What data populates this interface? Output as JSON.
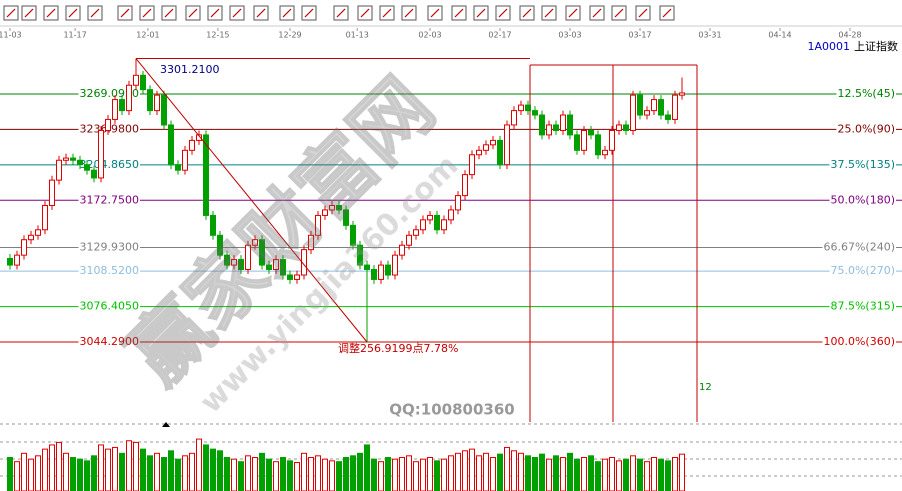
{
  "chart_data": {
    "type": "candlestick",
    "code": "1A0001",
    "name": "上证指数",
    "xlim": [
      -1.43,
      127.43
    ],
    "xticks": [
      {
        "value": 0,
        "label": "11-03"
      },
      {
        "value": 9.3,
        "label": "11-17"
      },
      {
        "value": 19.7,
        "label": "12-01"
      },
      {
        "value": 29.7,
        "label": "12-15"
      },
      {
        "value": 40,
        "label": "12-29"
      },
      {
        "value": 49.6,
        "label": "01-13"
      },
      {
        "value": 60,
        "label": "02-03"
      },
      {
        "value": 70,
        "label": "02-17"
      },
      {
        "value": 80,
        "label": "03-03"
      },
      {
        "value": 90,
        "label": "03-17"
      },
      {
        "value": 100,
        "label": "03-31"
      },
      {
        "value": 110,
        "label": "04-14"
      },
      {
        "value": 120,
        "label": "04-28"
      }
    ],
    "ylim": [
      2973.6,
      3332.5
    ],
    "up_color": "#e00000",
    "down_color": "#00a000",
    "open": [
      3120,
      3114,
      3123,
      3137,
      3141,
      3146,
      3168,
      3191,
      3209,
      3211,
      3209,
      3205,
      3200,
      3193,
      3236,
      3246,
      3264,
      3254,
      3277,
      3286,
      3273,
      3254,
      3268,
      3241,
      3205,
      3200,
      3218,
      3227,
      3232,
      3159,
      3141,
      3123,
      3114,
      3119,
      3110,
      3132,
      3137,
      3114,
      3110,
      3119,
      3105,
      3101,
      3105,
      3128,
      3141,
      3159,
      3164,
      3168,
      3164,
      3150,
      3132,
      3114,
      3110,
      3101,
      3114,
      3105,
      3123,
      3132,
      3141,
      3146,
      3155,
      3159,
      3146,
      3155,
      3164,
      3177,
      3196,
      3214,
      3218,
      3223,
      3227,
      3205,
      3241,
      3254,
      3259,
      3254,
      3250,
      3232,
      3241,
      3236,
      3250,
      3232,
      3218,
      3236,
      3232,
      3214,
      3218,
      3236,
      3241,
      3236,
      3268,
      3250,
      3254,
      3264,
      3250,
      3246,
      3268
    ],
    "high": [
      3124,
      3127,
      3141,
      3145,
      3150,
      3172,
      3195,
      3213,
      3215,
      3215,
      3213,
      3209,
      3204,
      3240,
      3250,
      3268,
      3268,
      3281,
      3301.21,
      3290,
      3277,
      3272,
      3272,
      3245,
      3209,
      3222,
      3231,
      3236,
      3236,
      3163,
      3145,
      3127,
      3123,
      3123,
      3136,
      3141,
      3141,
      3118,
      3123,
      3123,
      3109,
      3109,
      3132,
      3145,
      3163,
      3168,
      3172,
      3172,
      3168,
      3154,
      3136,
      3118,
      3114,
      3118,
      3118,
      3127,
      3136,
      3145,
      3150,
      3159,
      3163,
      3163,
      3159,
      3168,
      3181,
      3200,
      3218,
      3222,
      3227,
      3231,
      3231,
      3245,
      3258,
      3263,
      3263,
      3258,
      3254,
      3245,
      3245,
      3254,
      3254,
      3236,
      3240,
      3240,
      3236,
      3222,
      3240,
      3245,
      3245,
      3272,
      3272,
      3258,
      3268,
      3268,
      3254,
      3272,
      3284
    ],
    "low": [
      3110,
      3110,
      3119,
      3133,
      3137,
      3142,
      3164,
      3187,
      3205,
      3205,
      3201,
      3196,
      3189,
      3189,
      3232,
      3242,
      3250,
      3250,
      3273,
      3269,
      3250,
      3250,
      3237,
      3201,
      3196,
      3196,
      3214,
      3223,
      3155,
      3137,
      3119,
      3110,
      3110,
      3106,
      3106,
      3128,
      3110,
      3106,
      3106,
      3101,
      3097,
      3097,
      3101,
      3124,
      3137,
      3155,
      3160,
      3160,
      3146,
      3128,
      3110,
      3044.29,
      3097,
      3097,
      3101,
      3101,
      3119,
      3128,
      3137,
      3142,
      3151,
      3142,
      3142,
      3151,
      3160,
      3173,
      3192,
      3210,
      3214,
      3219,
      3201,
      3201,
      3237,
      3250,
      3250,
      3246,
      3228,
      3228,
      3232,
      3232,
      3228,
      3214,
      3214,
      3228,
      3210,
      3210,
      3214,
      3232,
      3232,
      3232,
      3246,
      3246,
      3250,
      3246,
      3242,
      3242,
      3264
    ],
    "close": [
      3114,
      3123,
      3137,
      3141,
      3146,
      3168,
      3191,
      3209,
      3211,
      3209,
      3205,
      3200,
      3193,
      3236,
      3246,
      3264,
      3254,
      3277,
      3286,
      3273,
      3254,
      3268,
      3241,
      3205,
      3200,
      3218,
      3227,
      3232,
      3159,
      3141,
      3123,
      3114,
      3119,
      3110,
      3132,
      3137,
      3114,
      3110,
      3119,
      3105,
      3101,
      3105,
      3128,
      3141,
      3159,
      3164,
      3168,
      3164,
      3150,
      3132,
      3114,
      3110,
      3101,
      3114,
      3105,
      3123,
      3132,
      3141,
      3146,
      3155,
      3159,
      3146,
      3155,
      3164,
      3177,
      3196,
      3214,
      3218,
      3223,
      3227,
      3205,
      3241,
      3254,
      3259,
      3254,
      3250,
      3232,
      3241,
      3236,
      3250,
      3232,
      3218,
      3236,
      3232,
      3214,
      3218,
      3236,
      3241,
      3236,
      3268,
      3250,
      3254,
      3264,
      3250,
      3246,
      3268,
      3270
    ],
    "volume": [
      40,
      35,
      45,
      38,
      42,
      50,
      55,
      58,
      45,
      40,
      38,
      36,
      42,
      55,
      50,
      52,
      45,
      60,
      58,
      50,
      42,
      45,
      40,
      48,
      38,
      42,
      45,
      62,
      55,
      50,
      48,
      40,
      38,
      35,
      42,
      40,
      45,
      38,
      35,
      40,
      36,
      34,
      45,
      40,
      42,
      38,
      36,
      35,
      40,
      42,
      45,
      55,
      38,
      35,
      40,
      38,
      40,
      42,
      35,
      38,
      40,
      36,
      38,
      42,
      45,
      48,
      50,
      42,
      45,
      40,
      44,
      52,
      48,
      45,
      42,
      40,
      44,
      38,
      42,
      40,
      45,
      38,
      40,
      42,
      35,
      38,
      40,
      36,
      38,
      42,
      38,
      35,
      40,
      38,
      36,
      40,
      44
    ],
    "volume_ylim": [
      0,
      80
    ],
    "high_label": "3301.2100",
    "levels": [
      {
        "price": {
          "value": 3269.095,
          "label": "3269.0950"
        },
        "ratio": "12.5%(45)",
        "color": "#008000"
      },
      {
        "price": {
          "value": 3236.98,
          "label": "3236.9800"
        },
        "ratio": "25.0%(90)",
        "color": "#800000"
      },
      {
        "price": {
          "value": 3204.865,
          "label": "3204.8650"
        },
        "ratio": "37.5%(135)",
        "color": "#008080"
      },
      {
        "price": {
          "value": 3172.75,
          "label": "3172.7500"
        },
        "ratio": "50.0%(180)",
        "color": "#800080"
      },
      {
        "price": {
          "value": 3129.93,
          "label": "3129.9300"
        },
        "ratio": "66.67%(240)",
        "color": "#808080"
      },
      {
        "price": {
          "value": 3108.52,
          "label": "3108.5200"
        },
        "ratio": "75.0%(270)",
        "color": "#8fbde0"
      },
      {
        "price": {
          "value": 3076.405,
          "label": "3076.4050"
        },
        "ratio": "87.5%(315)",
        "color": "#00c000"
      },
      {
        "price": {
          "value": 3044.29,
          "label": "3044.2900"
        },
        "ratio": "100.0%(360)",
        "color": "#d00000"
      }
    ],
    "adjust_note": "调整256.9199点7.78%",
    "cycle_label": "12",
    "qq": "QQ:100800360",
    "watermark": "赢家财富网",
    "watermark_url": "www.yingjia360.com"
  }
}
